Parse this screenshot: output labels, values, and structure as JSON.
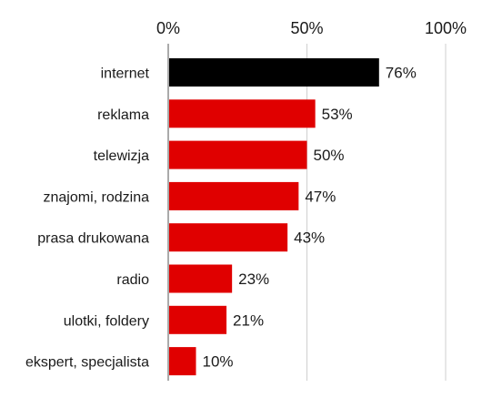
{
  "chart_data": {
    "type": "bar",
    "orientation": "horizontal",
    "categories": [
      "internet",
      "reklama",
      "telewizja",
      "znajomi, rodzina",
      "prasa drukowana",
      "radio",
      "ulotki, foldery",
      "ekspert, specjalista"
    ],
    "values": [
      76,
      53,
      50,
      47,
      43,
      23,
      21,
      10
    ],
    "value_labels": [
      "76%",
      "53%",
      "50%",
      "47%",
      "43%",
      "23%",
      "21%",
      "10%"
    ],
    "xlim": [
      0,
      100
    ],
    "x_ticks": [
      0,
      50,
      100
    ],
    "x_tick_labels": [
      "0%",
      "50%",
      "100%"
    ],
    "x_axis_position": "top",
    "grid": true,
    "title": "",
    "xlabel": "",
    "ylabel": "",
    "colors": {
      "highlight": "#000000",
      "default": "#e00000"
    },
    "highlight_index": 0
  }
}
